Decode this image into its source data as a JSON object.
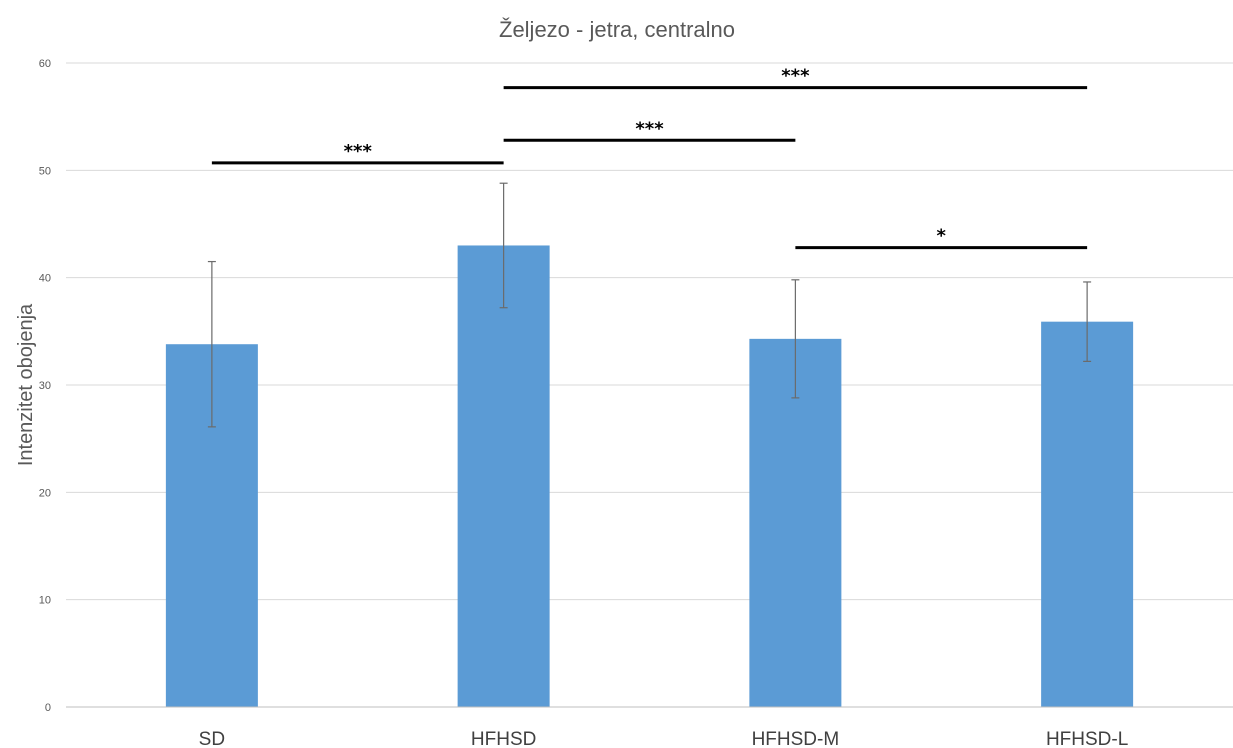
{
  "chart_data": {
    "type": "bar",
    "title": "Željezo - jetra, centralno",
    "xlabel": "",
    "ylabel": "Intenzitet obojenja",
    "categories": [
      "SD",
      "HFHSD",
      "HFHSD-M",
      "HFHSD-L"
    ],
    "values": [
      33.8,
      43.0,
      34.3,
      35.9
    ],
    "errors": [
      7.7,
      5.8,
      5.5,
      3.7
    ],
    "ylim": [
      0,
      60
    ],
    "yticks": [
      0,
      10,
      20,
      30,
      40,
      50,
      60
    ],
    "grid": true,
    "legend": "none",
    "bar_color": "#5b9bd5",
    "significance": [
      {
        "from": "SD",
        "to": "HFHSD",
        "label": "***",
        "y": 50.7
      },
      {
        "from": "HFHSD",
        "to": "HFHSD-M",
        "label": "***",
        "y": 52.8
      },
      {
        "from": "HFHSD",
        "to": "HFHSD-L",
        "label": "***",
        "y": 57.7
      },
      {
        "from": "HFHSD-M",
        "to": "HFHSD-L",
        "label": "*",
        "y": 42.8
      }
    ]
  }
}
